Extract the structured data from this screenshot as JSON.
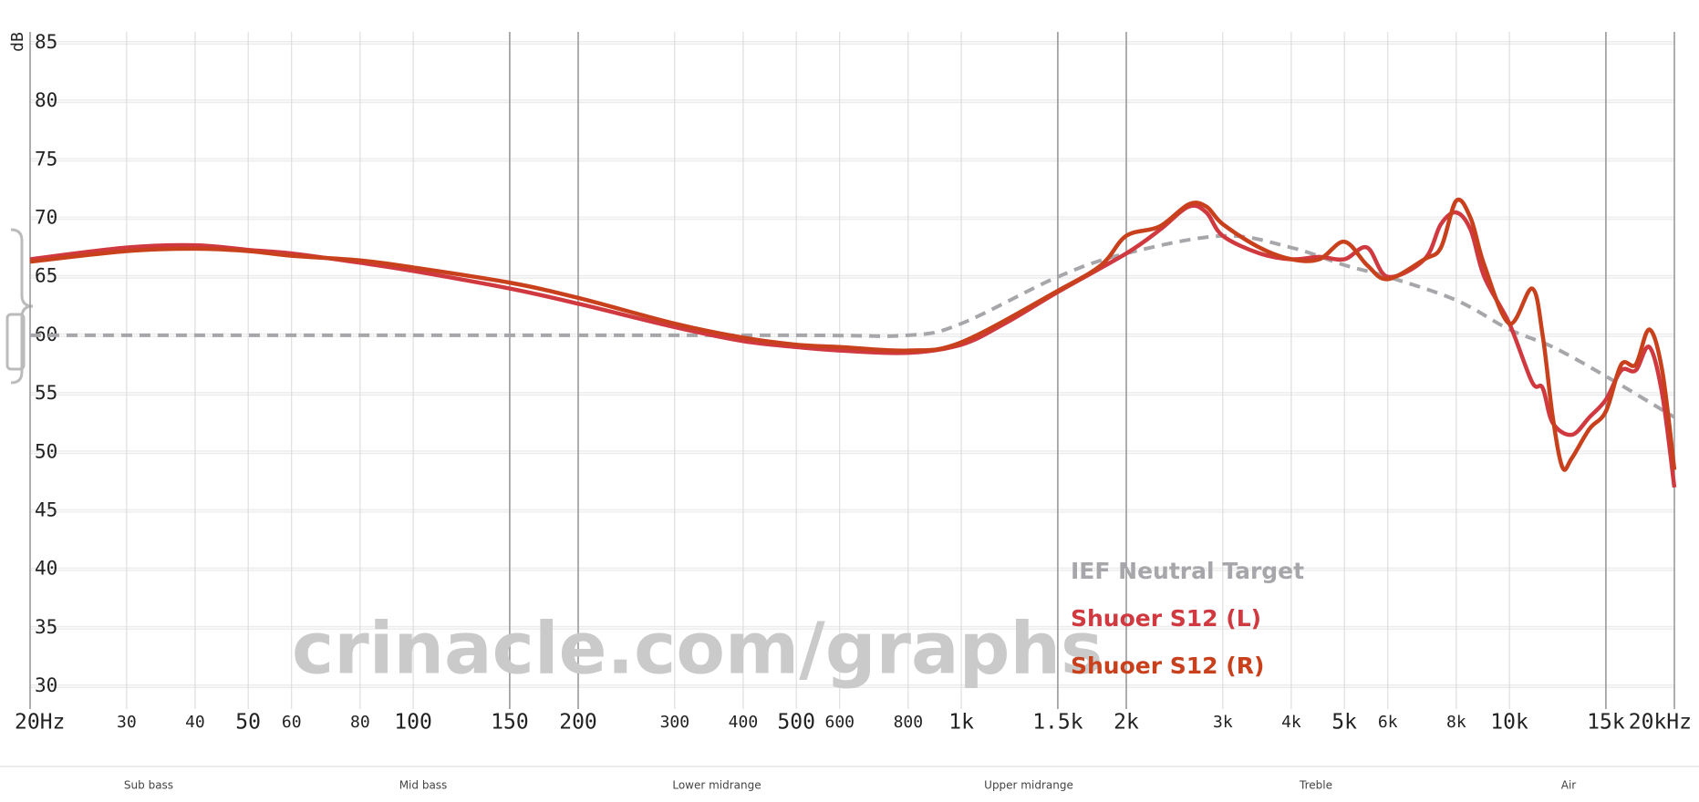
{
  "chart_data": {
    "type": "line",
    "log_x": true,
    "grid": true,
    "ylabel": "dB",
    "watermark": "crinacle.com/graphs",
    "xlim": [
      20,
      20000
    ],
    "ylim": [
      30,
      85
    ],
    "yticks": [
      30,
      35,
      40,
      45,
      50,
      55,
      60,
      65,
      70,
      75,
      80,
      85
    ],
    "xticks": [
      {
        "value": 20,
        "label": "20Hz"
      },
      30,
      40,
      50,
      60,
      80,
      100,
      150,
      200,
      300,
      400,
      500,
      600,
      800,
      {
        "value": 1000,
        "label": "1k"
      },
      {
        "value": 1500,
        "label": "1.5k"
      },
      {
        "value": 2000,
        "label": "2k"
      },
      {
        "value": 3000,
        "label": "3k"
      },
      {
        "value": 4000,
        "label": "4k"
      },
      {
        "value": 5000,
        "label": "5k"
      },
      {
        "value": 6000,
        "label": "6k"
      },
      {
        "value": 8000,
        "label": "8k"
      },
      {
        "value": 10000,
        "label": "10k"
      },
      {
        "value": 15000,
        "label": "15k"
      },
      {
        "value": 20000,
        "label": "20kHz"
      }
    ],
    "bands": [
      "Sub bass",
      "Mid bass",
      "Lower midrange",
      "Upper midrange",
      "Treble",
      "Air"
    ],
    "series": [
      {
        "name": "IEF Neutral Target",
        "color": "#a7a7ab",
        "dashed": true,
        "x": [
          20,
          100,
          500,
          800,
          1000,
          1500,
          2000,
          3000,
          4000,
          5000,
          6000,
          8000,
          10000,
          12000,
          15000,
          20000
        ],
        "values": [
          60,
          60,
          60,
          60,
          61,
          65,
          67,
          68.5,
          67.5,
          66,
          65,
          63,
          60.5,
          59,
          56.5,
          53
        ]
      },
      {
        "name": "Shuoer S12 (L)",
        "color": "#d0393f",
        "dashed": false,
        "x": [
          20,
          30,
          40,
          50,
          60,
          80,
          100,
          150,
          200,
          300,
          400,
          500,
          600,
          800,
          1000,
          1200,
          1500,
          2000,
          2300,
          2600,
          2800,
          3000,
          3500,
          4000,
          4500,
          5000,
          5500,
          6000,
          7000,
          7500,
          8000,
          8500,
          9000,
          10000,
          11000,
          11500,
          12000,
          13000,
          14000,
          15000,
          16000,
          17000,
          18000,
          19000,
          20000
        ],
        "values": [
          66.5,
          67.5,
          67.7,
          67.3,
          67,
          66.2,
          65.5,
          64,
          62.7,
          60.7,
          59.5,
          59,
          58.7,
          58.5,
          59.2,
          61,
          63.7,
          67,
          69,
          71,
          70.5,
          68.5,
          67,
          66.5,
          66.7,
          66.5,
          67.5,
          65,
          66.5,
          69.5,
          70.5,
          69,
          65,
          61,
          56,
          55.5,
          52.5,
          51.5,
          53,
          54.5,
          57,
          57,
          59,
          55,
          47
        ]
      },
      {
        "name": "Shuoer S12 (R)",
        "color": "#c8401c",
        "dashed": false,
        "x": [
          20,
          30,
          40,
          50,
          60,
          80,
          100,
          150,
          200,
          300,
          400,
          500,
          600,
          800,
          1000,
          1500,
          1800,
          2000,
          2300,
          2600,
          2800,
          3000,
          3500,
          4000,
          4500,
          5000,
          5500,
          6000,
          7000,
          7500,
          8000,
          8500,
          9000,
          10000,
          11000,
          11500,
          12000,
          12500,
          13000,
          14000,
          15000,
          16000,
          17000,
          18000,
          19000,
          20000
        ],
        "values": [
          66.3,
          67.2,
          67.4,
          67.2,
          66.8,
          66.4,
          65.8,
          64.5,
          63.2,
          61,
          59.8,
          59.2,
          59,
          58.7,
          59.4,
          63.8,
          66,
          68.5,
          69.3,
          71.2,
          71,
          69.5,
          67.5,
          66.5,
          66.5,
          68,
          66,
          64.8,
          66.5,
          67.5,
          71.5,
          70,
          66,
          61,
          64,
          60,
          53,
          48.7,
          49.5,
          52,
          53.5,
          57.5,
          57.5,
          60.5,
          57,
          48.5
        ]
      }
    ]
  }
}
